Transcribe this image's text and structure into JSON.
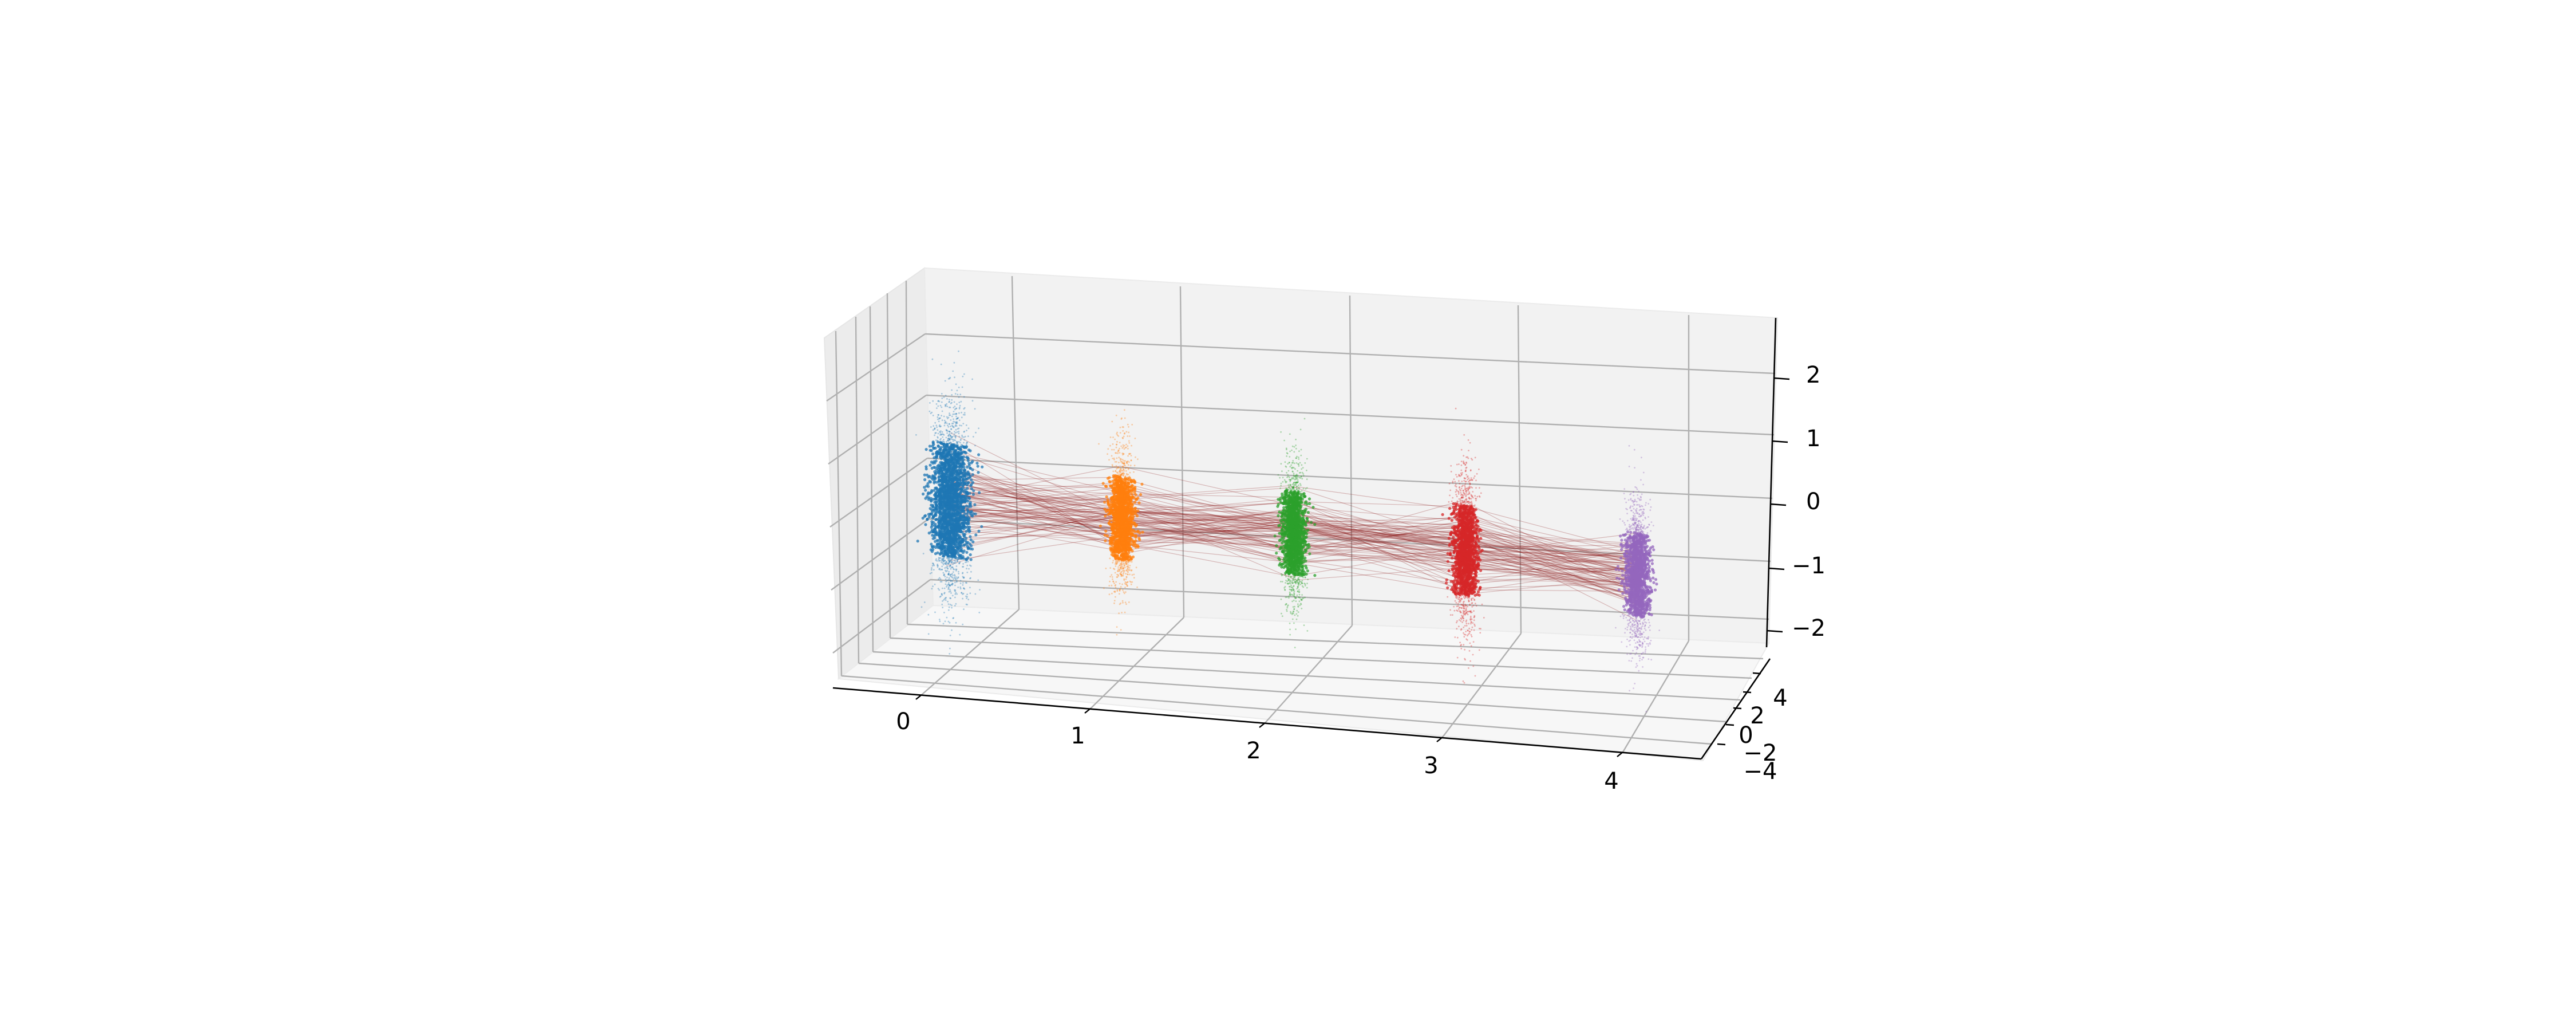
{
  "chart_data": {
    "type": "scatter",
    "projection": "3d",
    "xlabel": "",
    "ylabel": "",
    "zlabel": "",
    "xlim": [
      -0.5,
      4.5
    ],
    "ylim": [
      -4.5,
      4.5
    ],
    "zlim": [
      -2.4,
      2.6
    ],
    "x_ticks": [
      "0",
      "1",
      "2",
      "3",
      "4"
    ],
    "y_ticks": [
      "−4",
      "−2",
      "0",
      "2",
      "4"
    ],
    "z_ticks": [
      "−2",
      "−1",
      "0",
      "1",
      "2"
    ],
    "grid": true,
    "series": [
      {
        "x": 0,
        "color": "#1f77b4",
        "z_center": 0.1,
        "z_spread": 0.75,
        "y_spread": 1.4
      },
      {
        "x": 1,
        "color": "#ff7f0e",
        "z_center": 0.0,
        "z_spread": 0.55,
        "y_spread": 0.9
      },
      {
        "x": 2,
        "color": "#2ca02c",
        "z_center": -0.05,
        "z_spread": 0.55,
        "y_spread": 0.9
      },
      {
        "x": 3,
        "color": "#d62728",
        "z_center": -0.15,
        "z_spread": 0.6,
        "y_spread": 0.9
      },
      {
        "x": 4,
        "color": "#9467bd",
        "z_center": -0.35,
        "z_spread": 0.55,
        "y_spread": 0.9
      }
    ],
    "connecting_lines_color": "#8b1a1a"
  }
}
